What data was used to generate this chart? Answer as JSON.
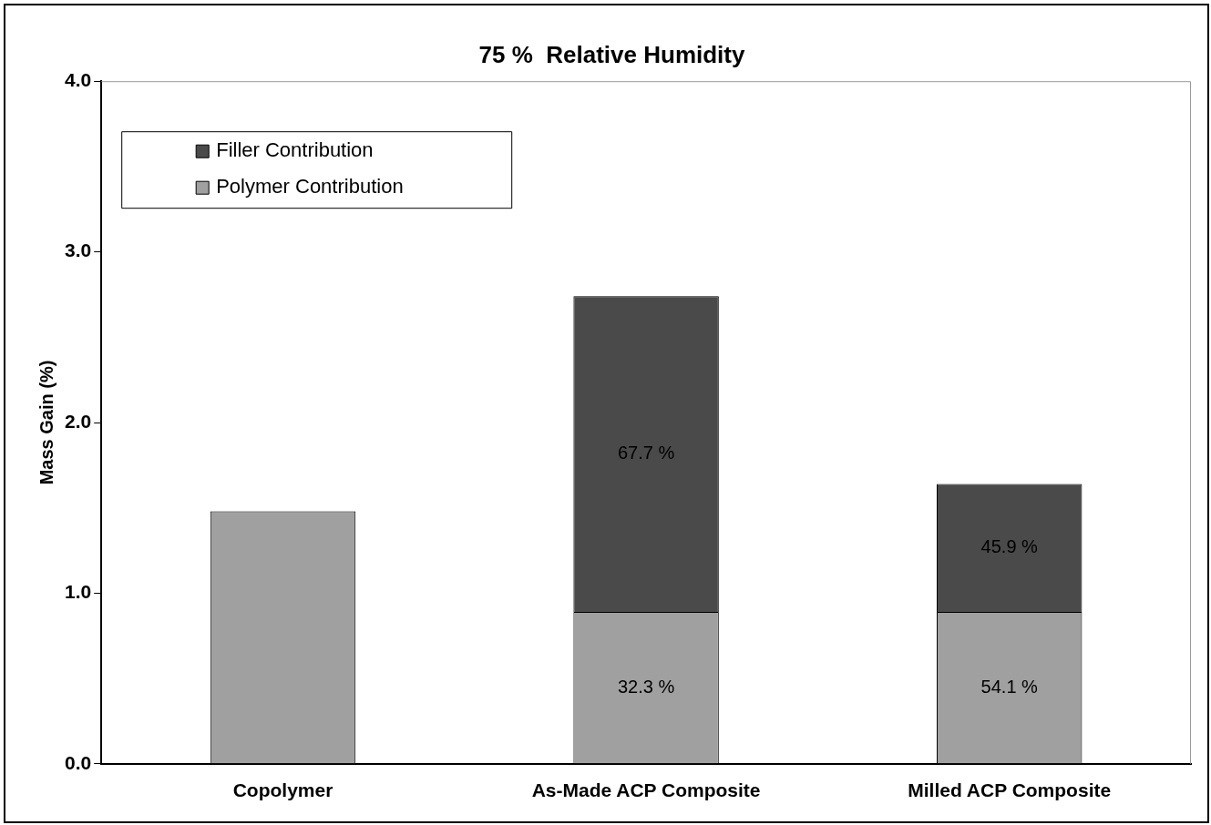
{
  "chart_data": {
    "type": "bar",
    "title": "75 %  Relative Humidity",
    "ylabel": "Mass Gain (%)",
    "categories": [
      "Copolymer",
      "As-Made ACP Composite",
      "Milled ACP Composite"
    ],
    "stacked": true,
    "series": [
      {
        "name": "Polymer Contribution",
        "color": "#a0a0a0",
        "values": [
          1.48,
          0.89,
          0.89
        ]
      },
      {
        "name": "Filler Contribution",
        "color": "#4a4a4a",
        "values": [
          null,
          1.85,
          0.75
        ]
      }
    ],
    "annotations": [
      "67.7 %",
      "32.3 %",
      "45.9 %",
      "54.1 %"
    ],
    "ylim": [
      0,
      4
    ],
    "yticks": [
      {
        "value": 0,
        "label": "0.0"
      },
      {
        "value": 1,
        "label": "1.0"
      },
      {
        "value": 2,
        "label": "2.0"
      },
      {
        "value": 3,
        "label": "3.0"
      },
      {
        "value": 4,
        "label": "4.0"
      }
    ],
    "grid": false,
    "legend": "top left"
  }
}
